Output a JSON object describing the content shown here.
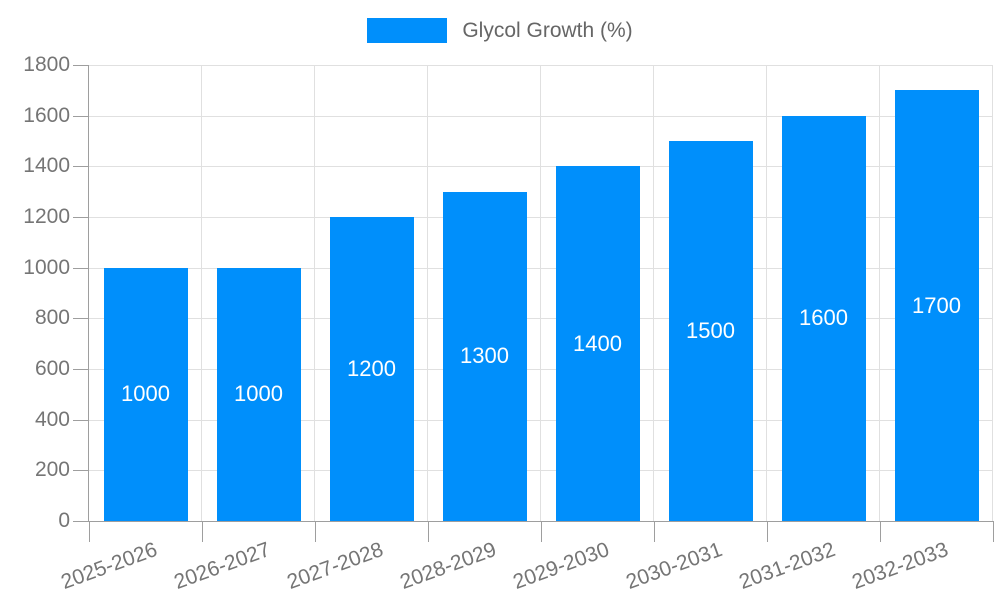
{
  "chart_data": {
    "type": "bar",
    "title": "Glycol Growth (%)",
    "categories": [
      "2025-2026",
      "2026-2027",
      "2027-2028",
      "2028-2029",
      "2029-2030",
      "2030-2031",
      "2031-2032",
      "2032-2033"
    ],
    "values": [
      1000,
      1000,
      1200,
      1300,
      1400,
      1500,
      1600,
      1700
    ],
    "series": [
      {
        "name": "Glycol Growth (%)",
        "values": [
          1000,
          1000,
          1200,
          1300,
          1400,
          1500,
          1600,
          1700
        ]
      }
    ],
    "data_labels": [
      "1000",
      "1000",
      "1200",
      "1300",
      "1400",
      "1500",
      "1600",
      "1700"
    ],
    "xlabel": "",
    "ylabel": "",
    "ylim": [
      0,
      1800
    ],
    "ytick_step": 200,
    "y_tick_labels": [
      "0",
      "200",
      "400",
      "600",
      "800",
      "1000",
      "1200",
      "1400",
      "1600",
      "1800"
    ],
    "grid": true,
    "legend_position": "top",
    "colors": {
      "bar": "#008ffb",
      "data_label": "#ffffff",
      "axis_text": "#757575",
      "legend_text": "#666666",
      "grid_line": "#e0e0e0",
      "axis_line": "#9e9e9e",
      "background": "#ffffff"
    }
  }
}
